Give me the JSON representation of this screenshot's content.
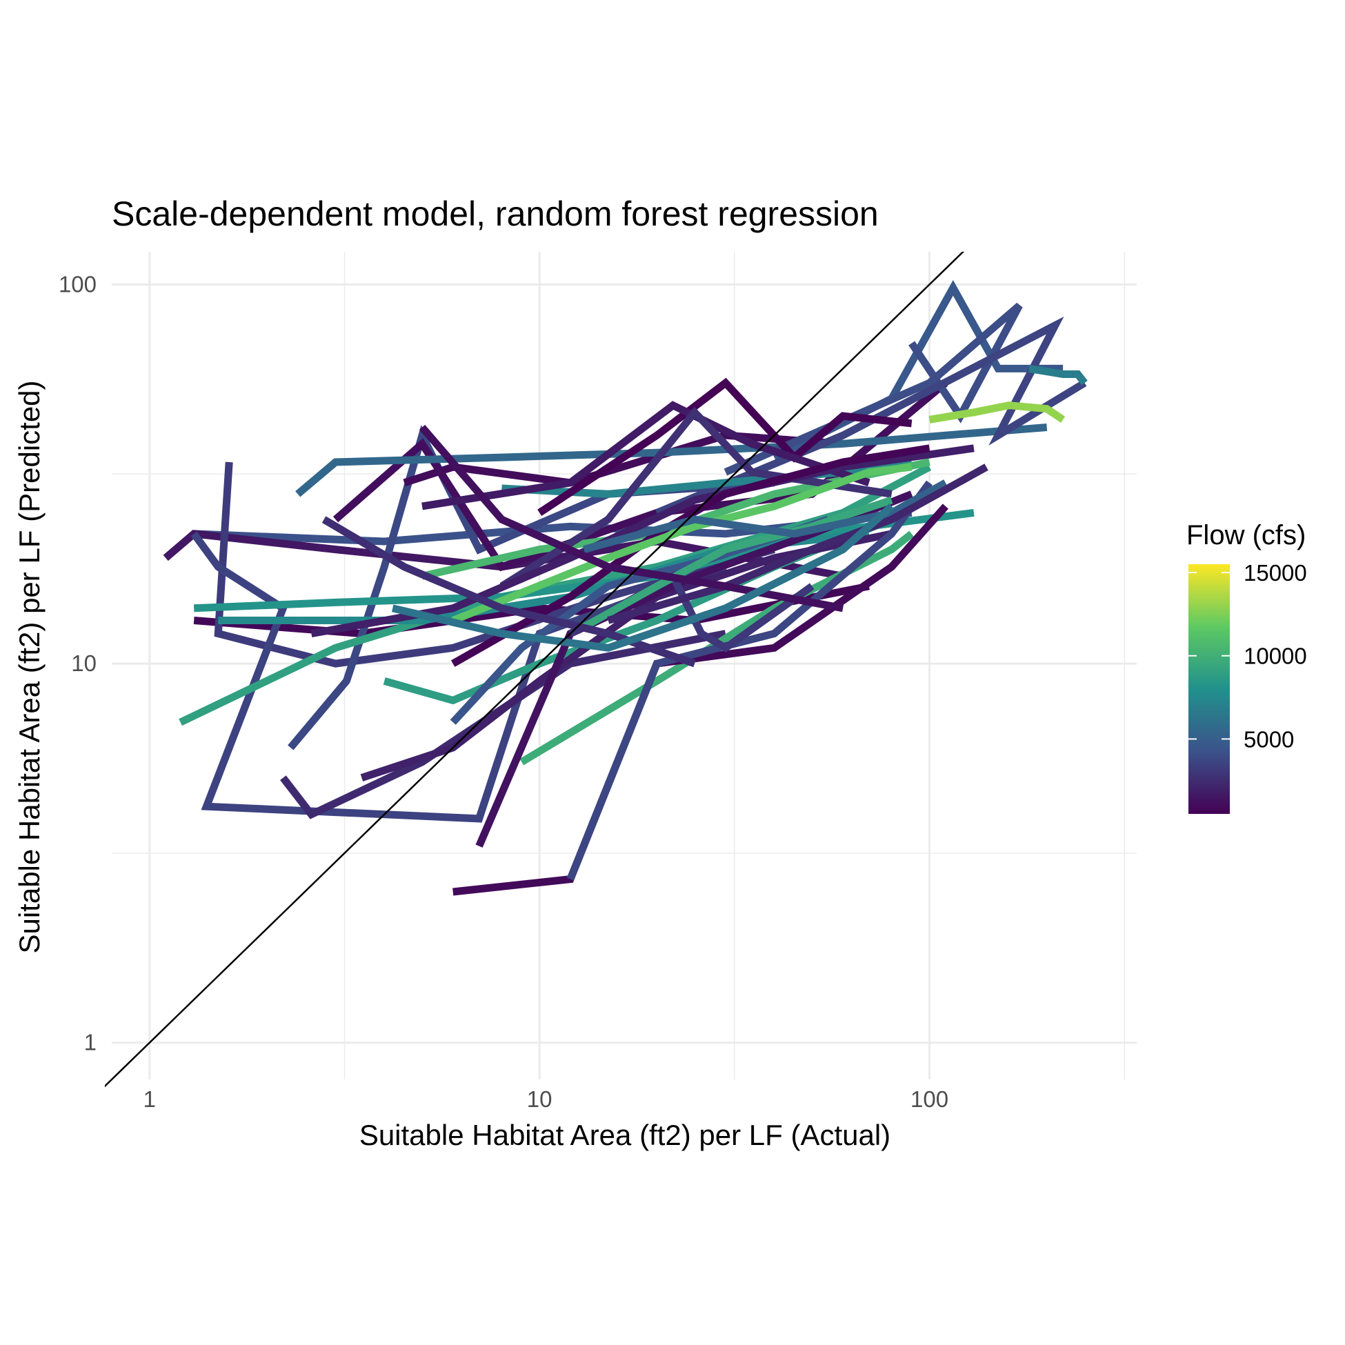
{
  "chart_data": {
    "type": "line",
    "title": "Scale-dependent model, random forest regression",
    "xlabel": "Suitable Habitat Area (ft2) per LF (Actual)",
    "ylabel": "Suitable Habitat Area (ft2) per LF (Predicted)",
    "x_scale": "log10",
    "y_scale": "log10",
    "xlim": [
      0.8,
      340
    ],
    "ylim": [
      0.8,
      122
    ],
    "x_ticks": [
      1,
      10,
      100
    ],
    "x_tick_labels": [
      "1",
      "10",
      "100"
    ],
    "y_ticks": [
      1,
      10,
      100
    ],
    "y_tick_labels": [
      "1",
      "10",
      "100"
    ],
    "grid": true,
    "reference_line": "y = x",
    "legend": {
      "title": "Flow (cfs)",
      "position": "right",
      "type": "colorbar",
      "palette": "viridis",
      "range": [
        500,
        15500
      ],
      "ticks": [
        5000,
        10000,
        15000
      ],
      "tick_labels": [
        "5000",
        "10000",
        "15000"
      ],
      "colors": [
        "#440154",
        "#3b528b",
        "#21918c",
        "#5ec962",
        "#fde725"
      ]
    },
    "series": [
      {
        "flow": 4200,
        "points": [
          [
            1.3,
            22
          ],
          [
            4.0,
            21
          ],
          [
            12,
            23
          ],
          [
            30,
            22
          ],
          [
            90,
            25
          ]
        ]
      },
      {
        "flow": 1500,
        "points": [
          [
            1.1,
            19
          ],
          [
            1.3,
            22
          ],
          [
            3,
            20
          ],
          [
            8,
            18
          ],
          [
            20,
            21
          ],
          [
            60,
            17
          ]
        ]
      },
      {
        "flow": 800,
        "points": [
          [
            1.3,
            13
          ],
          [
            3.5,
            12
          ],
          [
            10,
            14
          ],
          [
            25,
            13
          ],
          [
            70,
            16
          ]
        ]
      },
      {
        "flow": 3200,
        "points": [
          [
            1.6,
            34
          ],
          [
            1.5,
            12
          ],
          [
            3,
            10
          ],
          [
            6,
            11
          ],
          [
            15,
            15
          ],
          [
            40,
            20
          ]
        ]
      },
      {
        "flow": 3500,
        "points": [
          [
            1.3,
            22
          ],
          [
            1.5,
            18
          ],
          [
            2.2,
            14
          ],
          [
            1.4,
            4.2
          ],
          [
            7,
            3.9
          ],
          [
            10,
            12
          ],
          [
            30,
            18
          ]
        ]
      },
      {
        "flow": 2400,
        "points": [
          [
            2.2,
            5
          ],
          [
            2.6,
            4
          ],
          [
            5,
            5.5
          ],
          [
            12,
            10
          ],
          [
            30,
            12
          ]
        ]
      },
      {
        "flow": 3800,
        "points": [
          [
            2.3,
            6
          ],
          [
            3.2,
            9
          ],
          [
            4,
            18
          ],
          [
            5,
            40
          ],
          [
            7,
            20
          ],
          [
            15,
            28
          ],
          [
            40,
            30
          ]
        ]
      },
      {
        "flow": 1000,
        "points": [
          [
            4.5,
            30
          ],
          [
            6,
            33
          ],
          [
            12,
            30
          ],
          [
            30,
            40
          ],
          [
            60,
            38
          ]
        ]
      },
      {
        "flow": 1100,
        "points": [
          [
            3,
            24
          ],
          [
            5,
            38
          ],
          [
            8,
            18
          ],
          [
            20,
            25
          ],
          [
            50,
            28
          ],
          [
            110,
            55
          ]
        ]
      },
      {
        "flow": 5500,
        "points": [
          [
            2.4,
            28
          ],
          [
            3,
            34
          ],
          [
            8,
            35
          ],
          [
            20,
            36
          ],
          [
            60,
            38
          ],
          [
            110,
            40
          ],
          [
            200,
            42
          ]
        ]
      },
      {
        "flow": 4600,
        "points": [
          [
            40,
            35
          ],
          [
            80,
            50
          ],
          [
            115,
            98
          ],
          [
            150,
            60
          ],
          [
            220,
            60
          ]
        ]
      },
      {
        "flow": 4000,
        "points": [
          [
            30,
            32
          ],
          [
            100,
            55
          ],
          [
            170,
            88
          ],
          [
            120,
            45
          ],
          [
            90,
            70
          ]
        ]
      },
      {
        "flow": 3600,
        "points": [
          [
            20,
            25
          ],
          [
            60,
            40
          ],
          [
            210,
            78
          ],
          [
            150,
            40
          ],
          [
            250,
            55
          ]
        ]
      },
      {
        "flow": 6800,
        "points": [
          [
            180,
            60
          ],
          [
            220,
            58
          ],
          [
            240,
            58
          ],
          [
            250,
            55
          ]
        ]
      },
      {
        "flow": 13000,
        "points": [
          [
            100,
            44
          ],
          [
            130,
            46
          ],
          [
            160,
            48
          ],
          [
            200,
            47
          ],
          [
            220,
            44
          ]
        ]
      },
      {
        "flow": 9000,
        "points": [
          [
            1.2,
            7
          ],
          [
            3,
            11
          ],
          [
            8,
            15
          ],
          [
            20,
            18
          ],
          [
            60,
            25
          ],
          [
            100,
            33
          ]
        ]
      },
      {
        "flow": 8200,
        "points": [
          [
            1.3,
            14
          ],
          [
            3,
            14.5
          ],
          [
            8,
            15
          ],
          [
            20,
            17
          ],
          [
            50,
            22
          ],
          [
            130,
            25
          ]
        ]
      },
      {
        "flow": 9800,
        "points": [
          [
            9,
            5.5
          ],
          [
            20,
            9
          ],
          [
            40,
            14
          ],
          [
            80,
            20
          ],
          [
            90,
            22
          ]
        ]
      },
      {
        "flow": 7200,
        "points": [
          [
            8,
            29
          ],
          [
            15,
            28
          ],
          [
            30,
            30
          ],
          [
            60,
            32
          ],
          [
            90,
            34
          ]
        ]
      },
      {
        "flow": 10500,
        "points": [
          [
            5,
            17
          ],
          [
            10,
            20
          ],
          [
            20,
            22
          ],
          [
            40,
            28
          ],
          [
            100,
            34
          ]
        ]
      },
      {
        "flow": 8800,
        "points": [
          [
            4,
            9
          ],
          [
            6,
            8
          ],
          [
            10,
            10
          ],
          [
            20,
            13
          ],
          [
            40,
            18
          ],
          [
            80,
            24
          ]
        ]
      },
      {
        "flow": 7600,
        "points": [
          [
            1.5,
            13
          ],
          [
            5,
            13
          ],
          [
            12,
            15
          ],
          [
            30,
            20
          ],
          [
            70,
            22
          ]
        ]
      },
      {
        "flow": 2000,
        "points": [
          [
            3.5,
            5
          ],
          [
            6,
            6
          ],
          [
            10,
            9
          ],
          [
            20,
            15
          ],
          [
            40,
            19
          ],
          [
            80,
            22
          ]
        ]
      },
      {
        "flow": 900,
        "points": [
          [
            6,
            2.5
          ],
          [
            12,
            2.7
          ],
          [
            20,
            10
          ],
          [
            40,
            11
          ],
          [
            80,
            18
          ],
          [
            110,
            26
          ]
        ]
      },
      {
        "flow": 3700,
        "points": [
          [
            12,
            2.7
          ],
          [
            20,
            10
          ],
          [
            40,
            12
          ],
          [
            80,
            22
          ],
          [
            100,
            30
          ]
        ]
      },
      {
        "flow": 1300,
        "points": [
          [
            7,
            3.3
          ],
          [
            12,
            12
          ],
          [
            25,
            17
          ],
          [
            50,
            22
          ],
          [
            90,
            28
          ]
        ]
      },
      {
        "flow": 600,
        "points": [
          [
            10,
            25
          ],
          [
            20,
            40
          ],
          [
            30,
            55
          ],
          [
            45,
            35
          ],
          [
            60,
            45
          ],
          [
            90,
            43
          ]
        ]
      },
      {
        "flow": 1700,
        "points": [
          [
            5,
            26
          ],
          [
            12,
            30
          ],
          [
            22,
            48
          ],
          [
            35,
            38
          ],
          [
            70,
            30
          ]
        ]
      },
      {
        "flow": 2700,
        "points": [
          [
            8,
            16
          ],
          [
            15,
            24
          ],
          [
            25,
            46
          ],
          [
            35,
            32
          ],
          [
            80,
            28
          ]
        ]
      },
      {
        "flow": 1900,
        "points": [
          [
            2.6,
            12
          ],
          [
            6,
            14
          ],
          [
            12,
            19
          ],
          [
            25,
            27
          ],
          [
            60,
            33
          ],
          [
            130,
            37
          ]
        ]
      },
      {
        "flow": 4400,
        "points": [
          [
            6,
            7
          ],
          [
            9,
            11
          ],
          [
            15,
            16
          ],
          [
            28,
            19
          ],
          [
            55,
            24
          ]
        ]
      },
      {
        "flow": 3000,
        "points": [
          [
            12,
            12
          ],
          [
            22,
            17
          ],
          [
            26,
            12
          ],
          [
            30,
            11
          ],
          [
            50,
            16
          ]
        ]
      },
      {
        "flow": 700,
        "points": [
          [
            6,
            10
          ],
          [
            12,
            15
          ],
          [
            20,
            22
          ],
          [
            30,
            28
          ],
          [
            60,
            34
          ],
          [
            100,
            37
          ]
        ]
      },
      {
        "flow": 11500,
        "points": [
          [
            6,
            13
          ],
          [
            15,
            19
          ],
          [
            25,
            23
          ],
          [
            40,
            26
          ],
          [
            70,
            32
          ],
          [
            90,
            33
          ]
        ]
      },
      {
        "flow": 9500,
        "points": [
          [
            13,
            12.5
          ],
          [
            20,
            16
          ],
          [
            30,
            20
          ],
          [
            50,
            23
          ],
          [
            80,
            27
          ]
        ]
      },
      {
        "flow": 5200,
        "points": [
          [
            13,
            20
          ],
          [
            25,
            24
          ],
          [
            45,
            22
          ],
          [
            80,
            25
          ],
          [
            110,
            30
          ]
        ]
      },
      {
        "flow": 2200,
        "points": [
          [
            15,
            13
          ],
          [
            30,
            16
          ],
          [
            50,
            20
          ],
          [
            80,
            24
          ],
          [
            140,
            33
          ]
        ]
      },
      {
        "flow": 1200,
        "points": [
          [
            5,
            42
          ],
          [
            8,
            24
          ],
          [
            15,
            18
          ],
          [
            30,
            16
          ],
          [
            60,
            14
          ]
        ]
      },
      {
        "flow": 2600,
        "points": [
          [
            2.8,
            24
          ],
          [
            4.5,
            18
          ],
          [
            8,
            14
          ],
          [
            15,
            12
          ],
          [
            25,
            10
          ]
        ]
      },
      {
        "flow": 6200,
        "points": [
          [
            4.2,
            14
          ],
          [
            8,
            12
          ],
          [
            15,
            11
          ],
          [
            30,
            14
          ],
          [
            60,
            20
          ],
          [
            80,
            26
          ]
        ]
      }
    ]
  }
}
